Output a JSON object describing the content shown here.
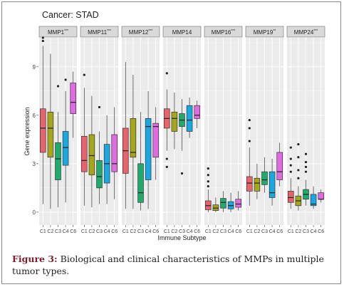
{
  "caption": {
    "label": "Figure 3:",
    "text": " Biological and clinical characteristics of MMPs in multiple tumor types."
  },
  "colors": {
    "C1": "#e8636b",
    "C2": "#a6a61a",
    "C3": "#1fab6b",
    "C4": "#1aa8e3",
    "C6": "#e06be3",
    "strip": "#d9d9d9",
    "panel": "#ebebeb"
  },
  "chart_data": {
    "type": "boxplot",
    "title": "Cancer: STAD",
    "xlabel": "Immune Subtype",
    "ylabel": "Gene expression",
    "ylim": [
      -0.8,
      10.8
    ],
    "yticks": [
      0,
      3,
      6,
      9
    ],
    "categories": [
      "C1",
      "C2",
      "C3",
      "C4",
      "C6"
    ],
    "grid": true,
    "panels": [
      {
        "gene": "MMP1",
        "sig": "***",
        "boxes": [
          {
            "group": "C1",
            "min": 0.5,
            "q1": 3.7,
            "median": 5.2,
            "q3": 6.4,
            "max": 10.3,
            "outliers": [
              10.8,
              10.6
            ]
          },
          {
            "group": "C2",
            "min": 0.2,
            "q1": 3.4,
            "median": 5.2,
            "q3": 6.2,
            "max": 9.8,
            "outliers": []
          },
          {
            "group": "C3",
            "min": 0.3,
            "q1": 2.0,
            "median": 3.3,
            "q3": 4.3,
            "max": 6.2,
            "outliers": [
              7.8
            ]
          },
          {
            "group": "C4",
            "min": 0.6,
            "q1": 2.9,
            "median": 4.0,
            "q3": 5.0,
            "max": 7.5,
            "outliers": [
              8.2
            ]
          },
          {
            "group": "C6",
            "min": 4.6,
            "q1": 6.1,
            "median": 6.8,
            "q3": 8.0,
            "max": 8.7,
            "outliers": []
          }
        ]
      },
      {
        "gene": "MMP11",
        "sig": "***",
        "boxes": [
          {
            "group": "C1",
            "min": 0.4,
            "q1": 2.5,
            "median": 3.2,
            "q3": 4.7,
            "max": 7.7,
            "outliers": [
              8.5
            ]
          },
          {
            "group": "C2",
            "min": 0.3,
            "q1": 2.3,
            "median": 3.5,
            "q3": 4.8,
            "max": 7.2,
            "outliers": []
          },
          {
            "group": "C3",
            "min": 0.5,
            "q1": 1.5,
            "median": 2.2,
            "q3": 3.2,
            "max": 5.0,
            "outliers": [
              6.5
            ]
          },
          {
            "group": "C4",
            "min": 0.5,
            "q1": 1.8,
            "median": 3.0,
            "q3": 4.2,
            "max": 6.0,
            "outliers": []
          },
          {
            "group": "C6",
            "min": 0.8,
            "q1": 2.5,
            "median": 3.0,
            "q3": 4.8,
            "max": 6.5,
            "outliers": []
          }
        ]
      },
      {
        "gene": "MMP12",
        "sig": "***",
        "boxes": [
          {
            "group": "C1",
            "min": 0.2,
            "q1": 2.4,
            "median": 3.8,
            "q3": 5.2,
            "max": 9.3,
            "outliers": []
          },
          {
            "group": "C2",
            "min": 0.2,
            "q1": 3.4,
            "median": 3.7,
            "q3": 5.8,
            "max": 8.5,
            "outliers": []
          },
          {
            "group": "C3",
            "min": 0.1,
            "q1": 0.6,
            "median": 1.2,
            "q3": 3.0,
            "max": 6.2,
            "outliers": []
          },
          {
            "group": "C4",
            "min": 0.2,
            "q1": 2.0,
            "median": 5.3,
            "q3": 5.8,
            "max": 7.5,
            "outliers": []
          },
          {
            "group": "C6",
            "min": 2.0,
            "q1": 3.4,
            "median": 5.3,
            "q3": 5.5,
            "max": 6.5,
            "outliers": []
          }
        ]
      },
      {
        "gene": "MMP14",
        "sig": "",
        "boxes": [
          {
            "group": "C1",
            "min": 3.8,
            "q1": 5.2,
            "median": 5.8,
            "q3": 6.4,
            "max": 7.6,
            "outliers": [
              8.6,
              3.3,
              2.8
            ]
          },
          {
            "group": "C2",
            "min": 3.9,
            "q1": 5.0,
            "median": 5.8,
            "q3": 6.2,
            "max": 7.4,
            "outliers": []
          },
          {
            "group": "C3",
            "min": 3.8,
            "q1": 5.3,
            "median": 5.7,
            "q3": 6.1,
            "max": 7.0,
            "outliers": [
              2.4
            ]
          },
          {
            "group": "C4",
            "min": 4.6,
            "q1": 5.0,
            "median": 5.7,
            "q3": 6.6,
            "max": 7.1,
            "outliers": []
          },
          {
            "group": "C6",
            "min": 5.2,
            "q1": 5.8,
            "median": 6.0,
            "q3": 6.6,
            "max": 6.9,
            "outliers": []
          }
        ]
      },
      {
        "gene": "MMP16",
        "sig": "***",
        "boxes": [
          {
            "group": "C1",
            "min": 0.0,
            "q1": 0.15,
            "median": 0.4,
            "q3": 0.7,
            "max": 1.4,
            "outliers": [
              2.7,
              2.3,
              1.9,
              1.6
            ]
          },
          {
            "group": "C2",
            "min": 0.0,
            "q1": 0.1,
            "median": 0.25,
            "q3": 0.45,
            "max": 0.9,
            "outliers": []
          },
          {
            "group": "C3",
            "min": 0.0,
            "q1": 0.25,
            "median": 0.6,
            "q3": 0.85,
            "max": 1.3,
            "outliers": []
          },
          {
            "group": "C4",
            "min": 0.0,
            "q1": 0.2,
            "median": 0.4,
            "q3": 0.65,
            "max": 1.2,
            "outliers": []
          },
          {
            "group": "C6",
            "min": 0.1,
            "q1": 0.3,
            "median": 0.5,
            "q3": 0.8,
            "max": 1.3,
            "outliers": []
          }
        ]
      },
      {
        "gene": "MMP19",
        "sig": "**",
        "boxes": [
          {
            "group": "C1",
            "min": 0.4,
            "q1": 1.3,
            "median": 1.8,
            "q3": 2.2,
            "max": 4.0,
            "outliers": [
              5.7,
              5.2,
              4.4
            ]
          },
          {
            "group": "C2",
            "min": 0.8,
            "q1": 1.3,
            "median": 1.8,
            "q3": 2.1,
            "max": 3.0,
            "outliers": []
          },
          {
            "group": "C3",
            "min": 1.2,
            "q1": 1.7,
            "median": 2.0,
            "q3": 2.5,
            "max": 3.4,
            "outliers": []
          },
          {
            "group": "C4",
            "min": 0.4,
            "q1": 0.9,
            "median": 1.2,
            "q3": 2.5,
            "max": 3.3,
            "outliers": []
          },
          {
            "group": "C6",
            "min": 1.6,
            "q1": 2.0,
            "median": 2.5,
            "q3": 3.7,
            "max": 4.3,
            "outliers": []
          }
        ]
      },
      {
        "gene": "MMP24",
        "sig": "***",
        "boxes": [
          {
            "group": "C1",
            "min": 0.2,
            "q1": 0.6,
            "median": 0.9,
            "q3": 1.3,
            "max": 2.1,
            "outliers": [
              4.0,
              3.3,
              2.9,
              2.5
            ]
          },
          {
            "group": "C2",
            "min": 0.1,
            "q1": 0.4,
            "median": 0.7,
            "q3": 1.0,
            "max": 1.6,
            "outliers": [
              4.2,
              3.4,
              2.6,
              2.1
            ]
          },
          {
            "group": "C3",
            "min": 0.4,
            "q1": 0.8,
            "median": 1.1,
            "q3": 1.4,
            "max": 2.0,
            "outliers": [
              3.6,
              3.1,
              2.8,
              2.5
            ]
          },
          {
            "group": "C4",
            "min": 0.2,
            "q1": 0.4,
            "median": 0.5,
            "q3": 1.1,
            "max": 1.6,
            "outliers": []
          },
          {
            "group": "C6",
            "min": 0.6,
            "q1": 0.8,
            "median": 0.8,
            "q3": 1.2,
            "max": 1.4,
            "outliers": []
          }
        ]
      }
    ]
  }
}
